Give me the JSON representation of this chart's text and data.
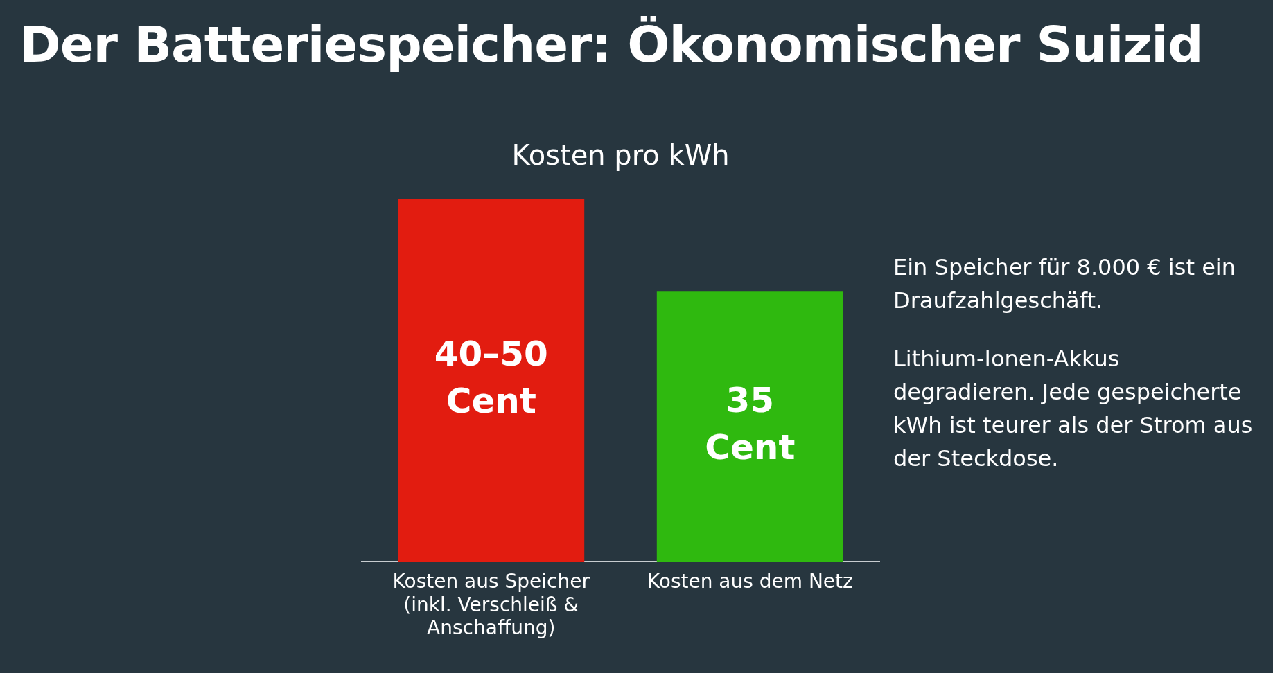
{
  "chart_data": {
    "type": "bar",
    "title": "Der Batteriespeicher: Ökonomischer Suizid",
    "subtitle": "Kosten pro kWh",
    "categories": [
      "Kosten aus Speicher (inkl. Verschleiß & Anschaffung)",
      "Kosten aus dem Netz"
    ],
    "values": [
      47,
      35
    ],
    "value_labels": [
      "40–50 Cent",
      "35 Cent"
    ],
    "colors": [
      "#e21c10",
      "#2fb90f"
    ],
    "annotations": [
      "Ein Speicher für 8.000 € ist ein Draufzahlgeschäft.",
      "Lithium-Ionen-Akkus degradieren. Jede gespeicherte kWh ist teurer als der Strom aus der Steckdose."
    ],
    "grid": false,
    "legend": false
  }
}
